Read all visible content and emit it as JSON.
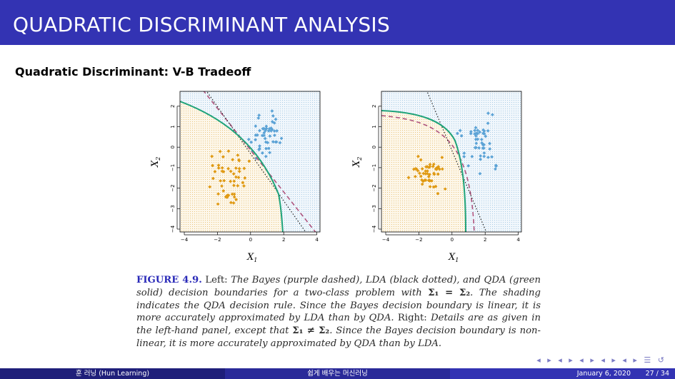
{
  "header": {
    "title": "QUADRATIC DISCRIMINANT ANALYSIS"
  },
  "slide": {
    "subtitle": "Quadratic Discriminant: V-B Tradeoff"
  },
  "plots": {
    "x_label": "X",
    "x_sub": "1",
    "y_label": "X",
    "y_sub": "2",
    "x_ticks": [
      "−4",
      "−2",
      "0",
      "2",
      "4"
    ],
    "y_ticks": [
      "−4",
      "−3",
      "−2",
      "−1",
      "0",
      "1",
      "2"
    ]
  },
  "colors": {
    "orange": "#e09a14",
    "blue": "#5ca3d6",
    "green": "#1fa37a",
    "bayes": "#b0557f",
    "lda": "#222222"
  },
  "caption": {
    "fig_label": "FIGURE 4.9.",
    "p1": "Left:",
    "p2": "The Bayes (purple dashed), LDA (black dotted), and QDA (green solid) decision boundaries for a two-class problem with",
    "eq1": "Σ₁ = Σ₂",
    "p3": ". The shading indicates the QDA decision rule. Since the Bayes decision boundary is linear, it is more accurately approximated by LDA than by QDA.",
    "p4": "Right:",
    "p5": "Details are as given in the left-hand panel, except that",
    "eq2": "Σ₁ ≠ Σ₂",
    "p6": ". Since the Bayes decision boundary is non-linear, it is more accurately approximated by QDA than by LDA."
  },
  "nav": {
    "symbols": "◂ ▸ ◂ ▸ ◂ ▸ ◂ ▸ ◂ ▸ ☰ ↺"
  },
  "footer": {
    "author": "훈 러닝 (Hun Learning)",
    "title": "쉽게 배우는 머신러닝",
    "date": "January 6, 2020",
    "page": "27 / 34"
  }
}
